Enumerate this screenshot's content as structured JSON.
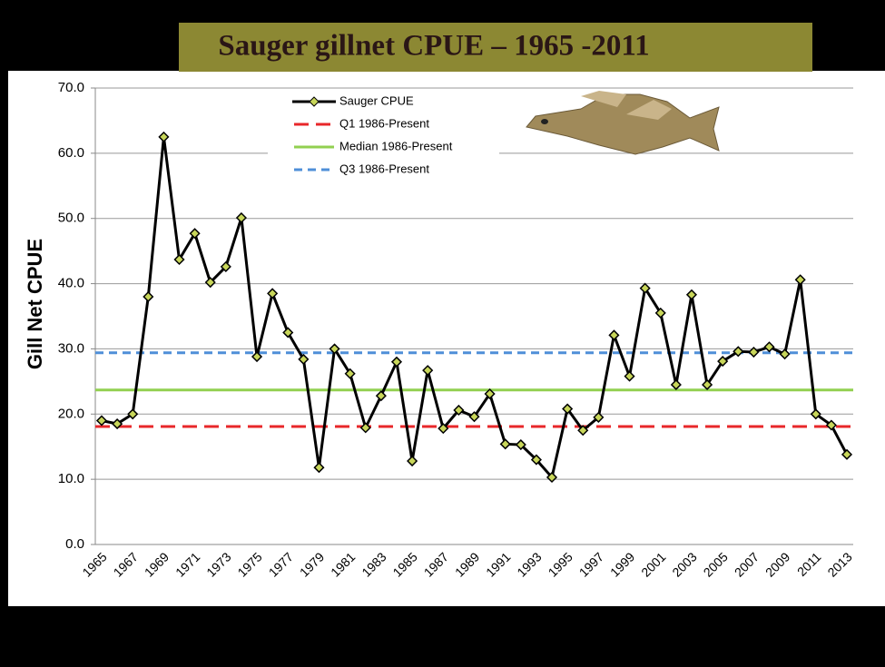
{
  "chart_data": {
    "type": "line",
    "title": "Sauger gillnet CPUE – 1965 -2011",
    "y_label": "Gill Net CPUE",
    "categories": [
      "1965",
      null,
      "1967",
      null,
      "1969",
      null,
      "1971",
      null,
      "1973",
      null,
      "1975",
      null,
      "1977",
      null,
      "1979",
      null,
      "1981",
      null,
      "1983",
      null,
      "1985",
      null,
      "1987",
      null,
      "1989",
      null,
      "1991",
      null,
      "1993",
      null,
      "1995",
      null,
      "1997",
      null,
      "1999",
      null,
      "2001",
      null,
      "2003",
      null,
      "2005",
      null,
      "2007",
      null,
      "2009",
      null,
      "2011",
      null,
      "2013"
    ],
    "series": [
      {
        "name": "Sauger CPUE",
        "color": "#000000",
        "marker_color": "#c8d65a",
        "values": [
          19.0,
          18.5,
          20.0,
          38.0,
          62.5,
          43.7,
          47.7,
          40.2,
          42.6,
          50.1,
          28.8,
          38.5,
          32.5,
          28.4,
          11.8,
          30.0,
          26.2,
          17.9,
          22.8,
          28.0,
          12.8,
          26.7,
          17.8,
          20.6,
          19.6,
          23.1,
          15.4,
          15.3,
          13.0,
          10.3,
          20.8,
          17.5,
          19.5,
          32.1,
          25.8,
          39.3,
          35.5,
          24.5,
          38.3,
          24.5,
          28.1,
          29.6,
          29.5,
          30.3,
          29.2,
          40.6,
          20.0,
          18.3,
          13.8
        ]
      }
    ],
    "reference_lines": [
      {
        "name": "Q1 1986-Present",
        "color": "#e8272a",
        "value": 18.1,
        "dash": "long"
      },
      {
        "name": "Median 1986-Present",
        "color": "#92d050",
        "value": 23.7,
        "dash": "solid"
      },
      {
        "name": "Q3 1986-Present",
        "color": "#4f8fd8",
        "value": 29.4,
        "dash": "short"
      }
    ],
    "ylim": [
      0,
      70
    ],
    "yticks": [
      {
        "value": 0,
        "label": "0.0"
      },
      {
        "value": 10,
        "label": "10.0"
      },
      {
        "value": 20,
        "label": "20.0"
      },
      {
        "value": 30,
        "label": "30.0"
      },
      {
        "value": 40,
        "label": "40.0"
      },
      {
        "value": 50,
        "label": "50.0"
      },
      {
        "value": 60,
        "label": "60.0"
      },
      {
        "value": 70,
        "label": "70.0"
      }
    ],
    "grid": true
  }
}
